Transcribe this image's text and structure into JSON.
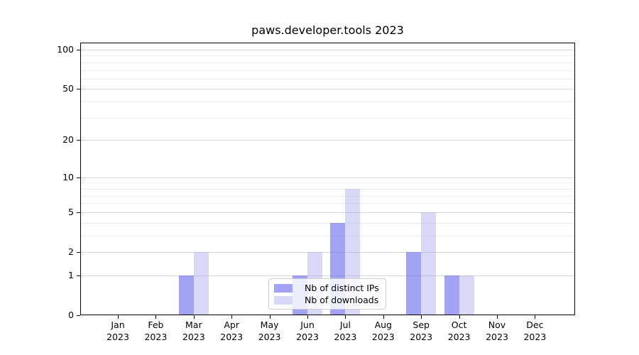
{
  "chart_data": {
    "type": "bar",
    "title": "paws.developer.tools 2023",
    "categories": [
      "Jan 2023",
      "Feb 2023",
      "Mar 2023",
      "Apr 2023",
      "May 2023",
      "Jun 2023",
      "Jul 2023",
      "Aug 2023",
      "Sep 2023",
      "Oct 2023",
      "Nov 2023",
      "Dec 2023"
    ],
    "series": [
      {
        "name": "Nb of distinct IPs",
        "color": "#6666ee",
        "alpha": 0.6,
        "values": [
          0,
          0,
          1,
          0,
          0,
          1,
          4,
          0,
          2,
          1,
          0,
          0
        ]
      },
      {
        "name": "Nb of downloads",
        "color": "#aaaaee",
        "alpha": 0.45,
        "values": [
          0,
          0,
          2,
          0,
          0,
          2,
          8,
          0,
          5,
          1,
          0,
          0
        ]
      }
    ],
    "xlabel": "",
    "ylabel": "",
    "yscale": "log1p",
    "ylim": [
      0,
      114
    ],
    "yticks": [
      0,
      1,
      2,
      5,
      10,
      20,
      50,
      100
    ],
    "minor_yticks": [
      3,
      4,
      6,
      7,
      8,
      9,
      30,
      40,
      60,
      70,
      80,
      90
    ],
    "grid": "on",
    "legend_position": "lower center inside plot",
    "colors": {
      "major_grid": "#d5d5d5",
      "minor_grid": "#ebebeb",
      "axis": "#000000",
      "legend_border": "#cccccc",
      "text": "#000000"
    }
  }
}
